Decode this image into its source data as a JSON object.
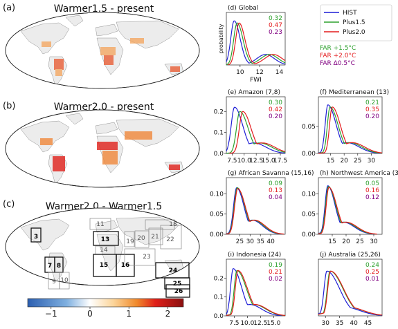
{
  "maps": [
    {
      "letter": "(a)",
      "title": "Warmer1.5 - present"
    },
    {
      "letter": "(b)",
      "title": "Warmer2.0 - present"
    },
    {
      "letter": "(c)",
      "title": "Warmer2.0 - Warmer1.5",
      "regions": [
        "3",
        "7",
        "8",
        "9",
        "10",
        "11",
        "13",
        "14",
        "15",
        "16",
        "18",
        "19",
        "20",
        "21",
        "22",
        "23",
        "24",
        "25",
        "26"
      ]
    }
  ],
  "colorbar": {
    "ticks": [
      "−1",
      "0",
      "1",
      "2"
    ],
    "min": -1.6,
    "max": 2.4
  },
  "legend": {
    "lines": [
      {
        "name": "HIST",
        "color": "#1f1fd6"
      },
      {
        "name": "Plus1.5",
        "color": "#2ca02c"
      },
      {
        "name": "Plus2.0",
        "color": "#e41a1c"
      }
    ],
    "far": [
      {
        "label": "FAR +1.5°C",
        "color": "#2ca02c"
      },
      {
        "label": "FAR +2.0°C",
        "color": "#e41a1c"
      },
      {
        "label": "FAR Δ0.5°C",
        "color": "#800080"
      }
    ]
  },
  "far_colors": [
    "#2ca02c",
    "#e41a1c",
    "#800080"
  ],
  "chart_data": [
    {
      "type": "line",
      "title": "(d) Global",
      "xlabel": "FWI",
      "ylabel": "probability",
      "xlim": [
        8.6,
        14.6
      ],
      "ylim": [
        0,
        0.75
      ],
      "xticks": [
        10,
        12,
        14
      ],
      "yticks": [],
      "far": [
        "0.32",
        "0.47",
        "0.23"
      ],
      "series": [
        {
          "name": "HIST",
          "peak": 9.4,
          "width_left": 0.35,
          "width_right": 0.6,
          "peak_y": 0.63,
          "tail": 12.6,
          "tail_width": 0.9,
          "tail_y": 0.15
        },
        {
          "name": "Plus1.5",
          "peak": 9.7,
          "width_left": 0.35,
          "width_right": 0.6,
          "peak_y": 0.6,
          "tail": 13.0,
          "tail_width": 0.9,
          "tail_y": 0.15
        },
        {
          "name": "Plus2.0",
          "peak": 9.9,
          "width_left": 0.35,
          "width_right": 0.6,
          "peak_y": 0.6,
          "tail": 13.4,
          "tail_width": 0.9,
          "tail_y": 0.15
        }
      ]
    },
    {
      "type": "line",
      "title": "(e) Amazon (7,8)",
      "xlim": [
        6.3,
        18.5
      ],
      "ylim": [
        0,
        0.27
      ],
      "xticks": [
        7.5,
        10.0,
        12.5,
        15.0,
        17.5
      ],
      "xticklabels": [
        "7.5",
        "10.0",
        "12.5",
        "15.0",
        "17.5"
      ],
      "yticks": [
        0.0,
        0.1,
        0.2
      ],
      "yticklabels": [
        "0.0",
        "0.1",
        "0.2"
      ],
      "far": [
        "0.30",
        "0.42",
        "0.20"
      ],
      "series": [
        {
          "name": "HIST",
          "peak": 8.0,
          "width_left": 0.7,
          "width_right": 1.7,
          "peak_y": 0.22,
          "tail": 12.0,
          "tail_width": 2.5,
          "tail_y": 0.05
        },
        {
          "name": "Plus1.5",
          "peak": 9.1,
          "width_left": 0.7,
          "width_right": 1.7,
          "peak_y": 0.2,
          "tail": 13.2,
          "tail_width": 2.5,
          "tail_y": 0.05
        },
        {
          "name": "Plus2.0",
          "peak": 9.7,
          "width_left": 0.7,
          "width_right": 1.7,
          "peak_y": 0.2,
          "tail": 13.8,
          "tail_width": 2.5,
          "tail_y": 0.05
        }
      ]
    },
    {
      "type": "line",
      "title": "(f) Mediterranean (13)",
      "xlim": [
        10.5,
        34
      ],
      "ylim": [
        0,
        0.105
      ],
      "xticks": [
        15,
        20,
        25,
        30
      ],
      "yticks": [
        0.0,
        0.05
      ],
      "yticklabels": [
        "0.00",
        "0.05"
      ],
      "far": [
        "0.21",
        "0.35",
        "0.20"
      ],
      "series": [
        {
          "name": "HIST",
          "peak": 14.0,
          "width_left": 1.0,
          "width_right": 3.0,
          "peak_y": 0.09,
          "tail": 21.0,
          "tail_width": 4.5,
          "tail_y": 0.02
        },
        {
          "name": "Plus1.5",
          "peak": 14.8,
          "width_left": 1.0,
          "width_right": 3.0,
          "peak_y": 0.086,
          "tail": 22.0,
          "tail_width": 4.5,
          "tail_y": 0.02
        },
        {
          "name": "Plus2.0",
          "peak": 15.6,
          "width_left": 1.0,
          "width_right": 3.0,
          "peak_y": 0.086,
          "tail": 23.0,
          "tail_width": 4.5,
          "tail_y": 0.02
        }
      ]
    },
    {
      "type": "line",
      "title": "(g) African Savanna (15,16)",
      "xlim": [
        18.5,
        47
      ],
      "ylim": [
        0,
        0.14
      ],
      "xticks": [
        25,
        30,
        35,
        40
      ],
      "yticks": [
        0.0,
        0.05,
        0.1
      ],
      "yticklabels": [
        "0.00",
        "0.05",
        "0.10"
      ],
      "far": [
        "0.09",
        "0.13",
        "0.04"
      ],
      "series": [
        {
          "name": "HIST",
          "peak": 23.5,
          "width_left": 1.5,
          "width_right": 3.5,
          "peak_y": 0.115,
          "tail": 31.0,
          "tail_width": 5.0,
          "tail_y": 0.035
        },
        {
          "name": "Plus1.5",
          "peak": 23.8,
          "width_left": 1.5,
          "width_right": 3.6,
          "peak_y": 0.115,
          "tail": 31.6,
          "tail_width": 5.0,
          "tail_y": 0.035
        },
        {
          "name": "Plus2.0",
          "peak": 24.0,
          "width_left": 1.5,
          "width_right": 3.7,
          "peak_y": 0.113,
          "tail": 32.2,
          "tail_width": 5.0,
          "tail_y": 0.035
        }
      ]
    },
    {
      "type": "line",
      "title": "(h) Northwest America (3)",
      "xlim": [
        10,
        33
      ],
      "ylim": [
        0,
        0.14
      ],
      "xticks": [
        15,
        20,
        25,
        30
      ],
      "yticks": [
        0.0,
        0.05,
        0.1
      ],
      "yticklabels": [
        "0.00",
        "0.05",
        "0.10"
      ],
      "far": [
        "0.05",
        "0.16",
        "0.12"
      ],
      "series": [
        {
          "name": "HIST",
          "peak": 13.4,
          "width_left": 1.0,
          "width_right": 2.6,
          "peak_y": 0.12,
          "tail": 19.0,
          "tail_width": 4.0,
          "tail_y": 0.03
        },
        {
          "name": "Plus1.5",
          "peak": 13.6,
          "width_left": 1.0,
          "width_right": 2.7,
          "peak_y": 0.118,
          "tail": 19.5,
          "tail_width": 4.0,
          "tail_y": 0.03
        },
        {
          "name": "Plus2.0",
          "peak": 13.8,
          "width_left": 1.0,
          "width_right": 2.8,
          "peak_y": 0.116,
          "tail": 20.0,
          "tail_width": 4.0,
          "tail_y": 0.03
        }
      ]
    },
    {
      "type": "line",
      "title": "(i) Indonesia (24)",
      "xlim": [
        6.0,
        17.2
      ],
      "ylim": [
        0,
        0.3
      ],
      "xticks": [
        7.5,
        10.0,
        12.5,
        15.0
      ],
      "xticklabels": [
        "7.5",
        "10.0",
        "12.5",
        "15.0"
      ],
      "yticks": [
        0.0,
        0.1,
        0.2
      ],
      "yticklabels": [
        "0.0",
        "0.1",
        "0.2"
      ],
      "far": [
        "0.19",
        "0.21",
        "0.02"
      ],
      "series": [
        {
          "name": "HIST",
          "peak": 7.3,
          "width_left": 0.5,
          "width_right": 1.6,
          "peak_y": 0.25,
          "tail": 10.5,
          "tail_width": 2.2,
          "tail_y": 0.06
        },
        {
          "name": "Plus1.5",
          "peak": 8.0,
          "width_left": 0.5,
          "width_right": 1.8,
          "peak_y": 0.24,
          "tail": 11.3,
          "tail_width": 2.2,
          "tail_y": 0.06
        },
        {
          "name": "Plus2.0",
          "peak": 8.2,
          "width_left": 0.5,
          "width_right": 1.8,
          "peak_y": 0.24,
          "tail": 11.5,
          "tail_width": 2.2,
          "tail_y": 0.06
        }
      ]
    },
    {
      "type": "line",
      "title": "(j) Australia (25,26)",
      "xlim": [
        27.5,
        50
      ],
      "ylim": [
        0,
        0.19
      ],
      "xticks": [
        30,
        35,
        40,
        45
      ],
      "yticks": [],
      "far": [
        "0.24",
        "0.25",
        "0.01"
      ],
      "series": [
        {
          "name": "HIST",
          "peak": 30.5,
          "width_left": 1.0,
          "width_right": 4.5,
          "peak_y": 0.15,
          "tail": 36.5,
          "tail_width": 5.5,
          "tail_y": 0.03
        },
        {
          "name": "Plus1.5",
          "peak": 31.6,
          "width_left": 1.0,
          "width_right": 4.6,
          "peak_y": 0.15,
          "tail": 37.6,
          "tail_width": 5.5,
          "tail_y": 0.03
        },
        {
          "name": "Plus2.0",
          "peak": 31.8,
          "width_left": 1.0,
          "width_right": 4.6,
          "peak_y": 0.15,
          "tail": 37.8,
          "tail_width": 5.5,
          "tail_y": 0.03
        }
      ]
    }
  ]
}
